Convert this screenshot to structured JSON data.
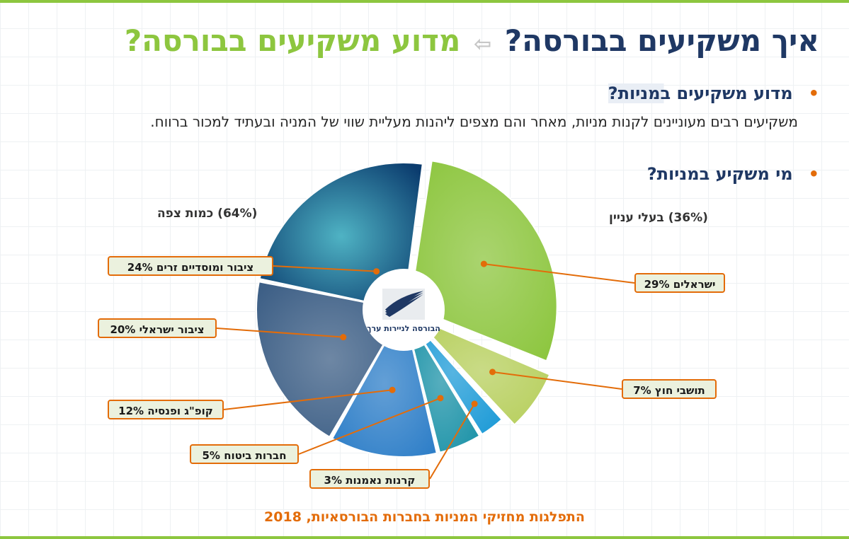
{
  "title": {
    "part_dark": "איך משקיעים בבורסה?",
    "arrow": "⇦",
    "part_green": "מדוע משקיעים בבורסה?"
  },
  "bullets": [
    {
      "text": "מדוע משקיעים במניות?"
    },
    {
      "text": "מי משקיע במניות?"
    }
  ],
  "paragraph": "משקיעים רבים מעוניינים לקנות מניות, מאחר והם מצפים ליהנות מעליית שווי של המניה ובעתיד למכור ברווח.",
  "groups": {
    "left": "(64%) כמות צפה",
    "right": "(36%) בעלי עניין"
  },
  "logo_text": "הבורסה לניירות ערך",
  "chart_data": {
    "type": "pie",
    "title": "התפלגות מחזיקי המניות בחברות הבורסאיות, 2018",
    "groups": [
      {
        "name": "בעלי עניין",
        "percent": 36
      },
      {
        "name": "כמות צפה",
        "percent": 64
      }
    ],
    "slices": [
      {
        "label": "ישראלים 29%",
        "value": 29,
        "group": "בעלי עניין",
        "color": "#8dc63f"
      },
      {
        "label": "תושבי חוץ 7%",
        "value": 7,
        "group": "בעלי עניין",
        "color": "#b7cf5d"
      },
      {
        "label": "קרנות נאמנות 3%",
        "value": 3,
        "group": "כמות צפה",
        "color": "#1e9bd7"
      },
      {
        "label": "חברות ביטוח 5%",
        "value": 5,
        "group": "כמות צפה",
        "color": "#1d93a8"
      },
      {
        "label": "קופ\"ג ופנסיה 12%",
        "value": 12,
        "group": "כמות צפה",
        "color": "#2f7fc8"
      },
      {
        "label": "ציבור ישראלי 20%",
        "value": 20,
        "group": "כמות צפה",
        "color": "#3d5f86"
      },
      {
        "label": "ציבור ומוסדיים זרים 24%",
        "value": 24,
        "group": "כמות צפה",
        "color": "#0b3c6e"
      }
    ],
    "leader_color": "#e36c09",
    "label_bg": "#ebf1de"
  }
}
